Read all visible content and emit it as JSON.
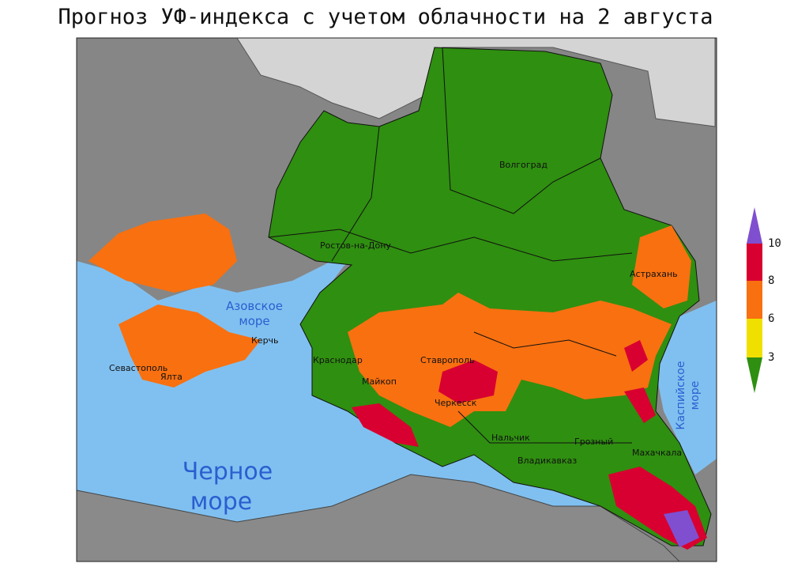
{
  "title": "Прогноз УФ-индекса с учетом облачности на  2 августа",
  "cities": [
    "Волгоград",
    "Ростов-на-Дону",
    "Астрахань",
    "Краснодар",
    "Ставрополь",
    "Майкоп",
    "Черкесск",
    "Нальчик",
    "Грозный",
    "Владикавказ",
    "Махачкала",
    "Севастополь",
    "Ялта",
    "Керчь"
  ],
  "seas": {
    "azov": [
      "Азовское",
      "море"
    ],
    "black": [
      "Черное",
      "море"
    ],
    "caspian": [
      "Каспийское",
      "море"
    ]
  },
  "legend": {
    "ticks": [
      10,
      8,
      6,
      3
    ],
    "colors": [
      "#7f4fd0",
      "#d80030",
      "#f87010",
      "#f0e000",
      "#2f8f10"
    ]
  }
}
